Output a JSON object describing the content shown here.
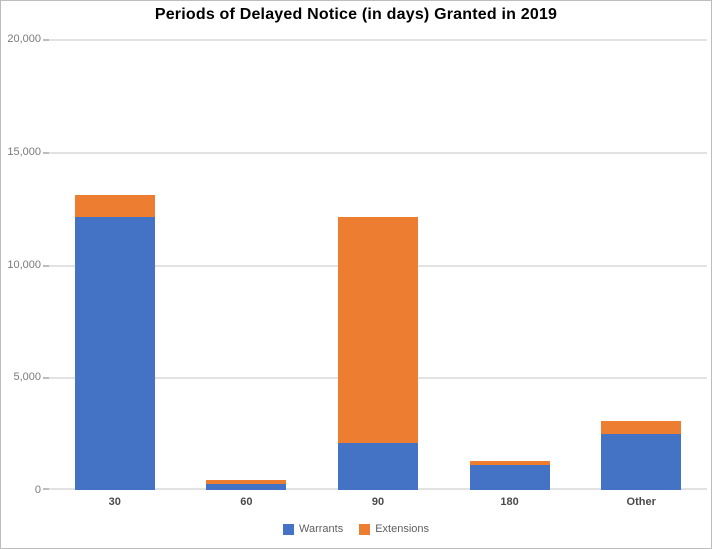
{
  "title": "Periods of Delayed Notice (in days) Granted in 2019",
  "chart_data": {
    "type": "bar",
    "stacked": true,
    "title": "Periods of Delayed Notice (in days) Granted in 2019",
    "xlabel": "",
    "ylabel": "",
    "categories": [
      "30",
      "60",
      "90",
      "180",
      "Other"
    ],
    "series": [
      {
        "name": "Warrants",
        "color": "#4472C4",
        "values": [
          12100,
          250,
          2100,
          1100,
          2500
        ]
      },
      {
        "name": "Extensions",
        "color": "#ED7D31",
        "values": [
          1000,
          200,
          10000,
          200,
          550
        ]
      }
    ],
    "totals": [
      13100,
      450,
      12100,
      1300,
      3050
    ],
    "ylim": [
      0,
      20000
    ],
    "yticks": [
      0,
      5000,
      10000,
      15000,
      20000
    ],
    "ytick_labels": [
      "0",
      "5,000",
      "10,000",
      "15,000",
      "20,000"
    ],
    "grid": true,
    "legend_position": "bottom"
  }
}
